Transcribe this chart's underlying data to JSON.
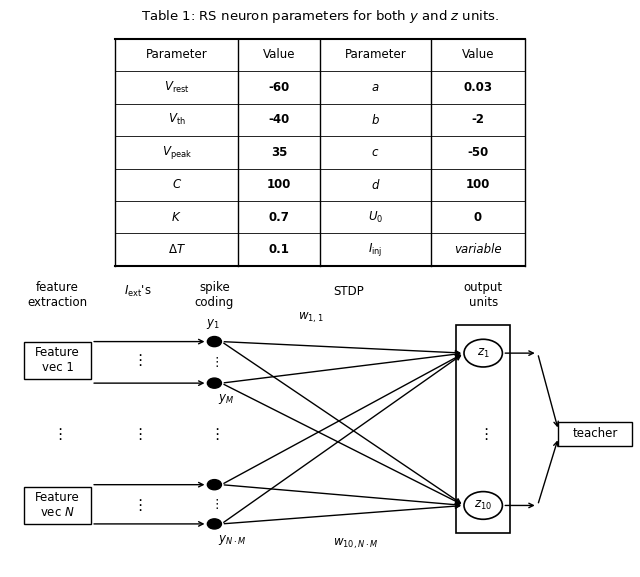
{
  "title": "Table 1: RS neuron parameters for both $y$ and $z$ units.",
  "table_params_left": [
    "$V_\\mathrm{rest}$",
    "$V_\\mathrm{th}$",
    "$V_\\mathrm{peak}$",
    "$C$",
    "$K$",
    "$\\Delta T$"
  ],
  "table_values_left": [
    "-60",
    "-40",
    "35",
    "100",
    "0.7",
    "0.1"
  ],
  "table_params_right": [
    "$a$",
    "$b$",
    "$c$",
    "$d$",
    "$U_0$",
    "$I_\\mathrm{inj}$"
  ],
  "table_values_right": [
    "0.03",
    "-2",
    "-50",
    "100",
    "0",
    "variable"
  ],
  "col_headers": [
    "Parameter",
    "Value",
    "Parameter",
    "Value"
  ],
  "label_feat1": "Feature\nvec 1",
  "label_featN": "Feature\nvec $N$",
  "label_teacher": "teacher",
  "label_feature_extraction": "feature\nextraction",
  "label_iext": "$I_\\mathrm{ext}$'s",
  "label_spike_coding": "spike\ncoding",
  "label_STDP": "STDP",
  "label_output_units": "output\nunits",
  "node_y1": "$y_1$",
  "node_yM": "$y_M$",
  "node_yNM": "$y_{N\\cdot M}$",
  "node_z1": "$z_1$",
  "node_z10": "$z_{10}$",
  "weight_w11": "$w_{1,1}$",
  "weight_w10NM": "$w_{10,N\\cdot M}$",
  "bg_color": "#ffffff"
}
